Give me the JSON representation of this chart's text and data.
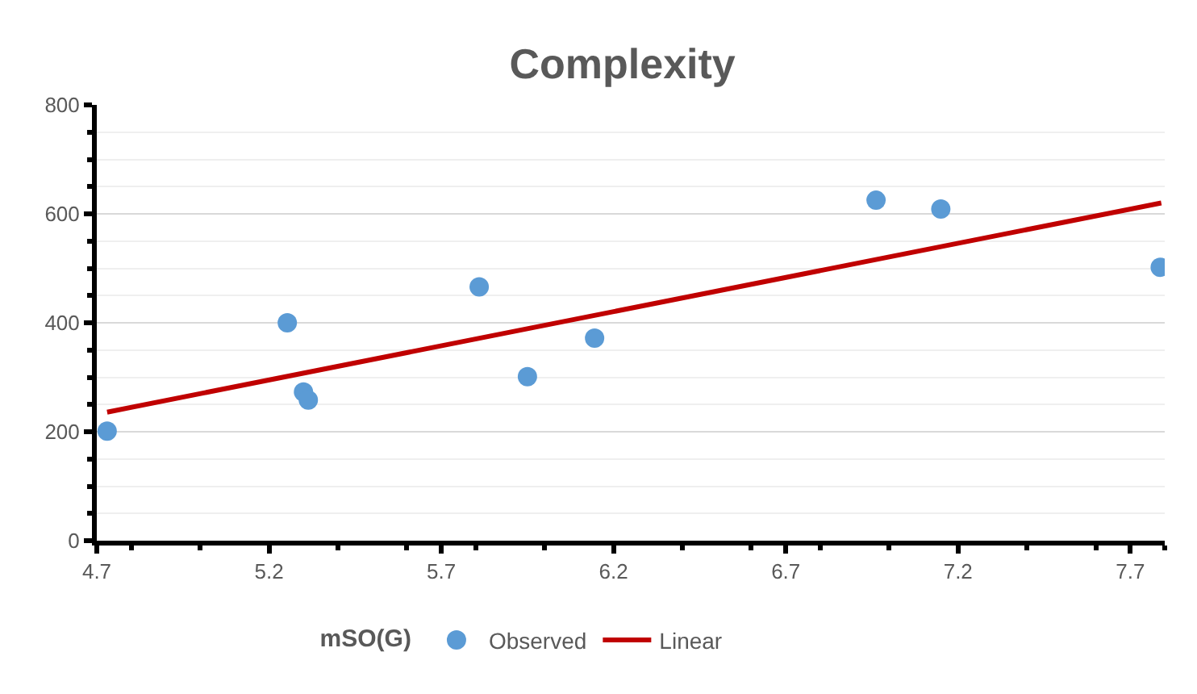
{
  "chart_data": {
    "type": "scatter",
    "title": "Complexity",
    "legend_title": "mSO(G)",
    "x": [
      4.73,
      5.253,
      5.3,
      5.314,
      5.81,
      5.95,
      6.145,
      6.962,
      7.15,
      7.787
    ],
    "series": [
      {
        "name": "Observed",
        "color": "#5b9bd5",
        "marker": "circle",
        "values": [
          201,
          400,
          273,
          258,
          466,
          301,
          372,
          625,
          609,
          502
        ]
      },
      {
        "name": "Linear",
        "type": "line",
        "color": "#c00000",
        "line_style": "solid",
        "x": [
          4.73,
          7.79
        ],
        "values": [
          236,
          620
        ]
      }
    ],
    "xlim": [
      4.7,
      7.8
    ],
    "xticks": [
      4.7,
      5.2,
      5.7,
      6.2,
      6.7,
      7.2,
      7.7
    ],
    "ylim": [
      0,
      800
    ],
    "yticks": [
      0,
      200,
      400,
      600,
      800
    ],
    "grid": "y",
    "legend": "bottom"
  }
}
